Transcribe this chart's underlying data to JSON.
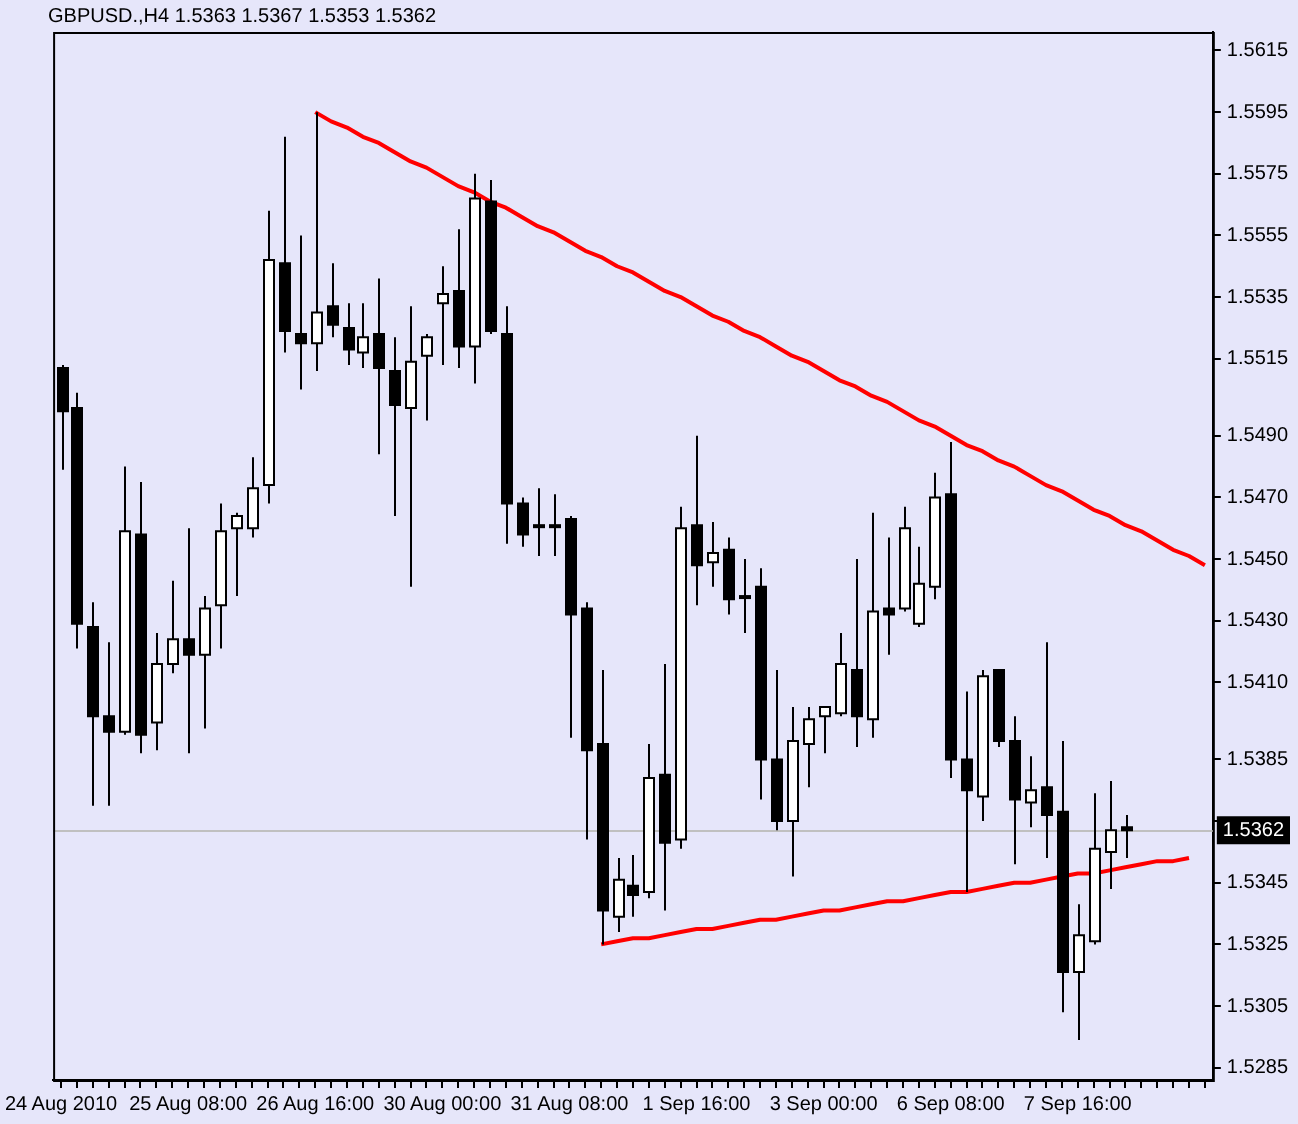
{
  "chart_data": {
    "type": "candlestick",
    "title": "GBPUSD.,H4 1.5363 1.5367 1.5353 1.5362",
    "categories": [
      "24 Aug 2010",
      null,
      null,
      null,
      null,
      null,
      null,
      null,
      "25 Aug 08:00",
      null,
      null,
      null,
      null,
      null,
      null,
      null,
      "26 Aug 16:00",
      null,
      null,
      null,
      null,
      null,
      null,
      null,
      "30 Aug 00:00",
      null,
      null,
      null,
      null,
      null,
      null,
      null,
      "31 Aug 08:00",
      null,
      null,
      null,
      null,
      null,
      null,
      null,
      "1 Sep 16:00",
      null,
      null,
      null,
      null,
      null,
      null,
      null,
      "3 Sep 00:00",
      null,
      null,
      null,
      null,
      null,
      null,
      null,
      "6 Sep 08:00",
      null,
      null,
      null,
      null,
      null,
      null,
      null,
      "7 Sep 16:00",
      null,
      null,
      null,
      null,
      null,
      null,
      null,
      null
    ],
    "ohlc": [
      [
        1.5512,
        1.5513,
        1.5479,
        1.5498
      ],
      [
        1.5499,
        1.5504,
        1.5421,
        1.5429
      ],
      [
        1.5428,
        1.5436,
        1.537,
        1.5399
      ],
      [
        1.5399,
        1.5423,
        1.537,
        1.5394
      ],
      [
        1.5394,
        1.548,
        1.5393,
        1.5459
      ],
      [
        1.5458,
        1.5475,
        1.5387,
        1.5393
      ],
      [
        1.5397,
        1.5426,
        1.5388,
        1.5416
      ],
      [
        1.5416,
        1.5443,
        1.5413,
        1.5424
      ],
      [
        1.5424,
        1.546,
        1.5387,
        1.5419
      ],
      [
        1.5419,
        1.5438,
        1.5395,
        1.5434
      ],
      [
        1.5435,
        1.5468,
        1.5421,
        1.5459
      ],
      [
        1.546,
        1.5465,
        1.5438,
        1.5464
      ],
      [
        1.546,
        1.5483,
        1.5457,
        1.5473
      ],
      [
        1.5474,
        1.5563,
        1.5468,
        1.5547
      ],
      [
        1.5546,
        1.5587,
        1.5517,
        1.5524
      ],
      [
        1.5523,
        1.5555,
        1.5505,
        1.552
      ],
      [
        1.552,
        1.5595,
        1.5511,
        1.553
      ],
      [
        1.5532,
        1.5546,
        1.5522,
        1.5526
      ],
      [
        1.5525,
        1.5533,
        1.5513,
        1.5518
      ],
      [
        1.5517,
        1.5533,
        1.5512,
        1.5522
      ],
      [
        1.5523,
        1.5541,
        1.5484,
        1.5512
      ],
      [
        1.5511,
        1.5522,
        1.5464,
        1.55
      ],
      [
        1.5499,
        1.5532,
        1.5441,
        1.5514
      ],
      [
        1.5516,
        1.5523,
        1.5495,
        1.5522
      ],
      [
        1.5533,
        1.5545,
        1.5513,
        1.5536
      ],
      [
        1.5537,
        1.5557,
        1.5512,
        1.5519
      ],
      [
        1.5519,
        1.5575,
        1.5507,
        1.5567
      ],
      [
        1.5566,
        1.5573,
        1.5523,
        1.5524
      ],
      [
        1.5523,
        1.5532,
        1.5455,
        1.5468
      ],
      [
        1.5468,
        1.547,
        1.5454,
        1.5458
      ],
      [
        1.5461,
        1.5473,
        1.5451,
        1.5461
      ],
      [
        1.5461,
        1.5471,
        1.5451,
        1.5461
      ],
      [
        1.5463,
        1.5464,
        1.5392,
        1.5432
      ],
      [
        1.5434,
        1.5436,
        1.5359,
        1.5388
      ],
      [
        1.539,
        1.5414,
        1.5325,
        1.5336
      ],
      [
        1.5334,
        1.5353,
        1.5329,
        1.5346
      ],
      [
        1.5344,
        1.5354,
        1.5334,
        1.5341
      ],
      [
        1.5342,
        1.539,
        1.534,
        1.5379
      ],
      [
        1.538,
        1.5416,
        1.5336,
        1.5358
      ],
      [
        1.5359,
        1.5467,
        1.5356,
        1.546
      ],
      [
        1.5461,
        1.549,
        1.5435,
        1.5448
      ],
      [
        1.5449,
        1.5462,
        1.5441,
        1.5452
      ],
      [
        1.5453,
        1.5457,
        1.5432,
        1.5437
      ],
      [
        1.5438,
        1.545,
        1.5426,
        1.5438
      ],
      [
        1.5441,
        1.5447,
        1.5372,
        1.5385
      ],
      [
        1.5385,
        1.5414,
        1.5362,
        1.5365
      ],
      [
        1.5365,
        1.5402,
        1.5347,
        1.5391
      ],
      [
        1.539,
        1.5402,
        1.5376,
        1.5398
      ],
      [
        1.5399,
        1.5402,
        1.5387,
        1.5402
      ],
      [
        1.54,
        1.5426,
        1.5399,
        1.5416
      ],
      [
        1.5414,
        1.545,
        1.5389,
        1.5399
      ],
      [
        1.5398,
        1.5465,
        1.5392,
        1.5433
      ],
      [
        1.5434,
        1.5457,
        1.5419,
        1.5432
      ],
      [
        1.5434,
        1.5467,
        1.5433,
        1.546
      ],
      [
        1.5429,
        1.5454,
        1.5428,
        1.5442
      ],
      [
        1.5441,
        1.5478,
        1.5437,
        1.547
      ],
      [
        1.5471,
        1.5488,
        1.5379,
        1.5385
      ],
      [
        1.5385,
        1.5407,
        1.5342,
        1.5375
      ],
      [
        1.5373,
        1.5414,
        1.5365,
        1.5412
      ],
      [
        1.5414,
        1.5414,
        1.5389,
        1.5391
      ],
      [
        1.5391,
        1.5399,
        1.5351,
        1.5372
      ],
      [
        1.5371,
        1.5386,
        1.5363,
        1.5375
      ],
      [
        1.5376,
        1.5423,
        1.5353,
        1.5367
      ],
      [
        1.5368,
        1.5391,
        1.5303,
        1.5316
      ],
      [
        1.5316,
        1.5338,
        1.5294,
        1.5328
      ],
      [
        1.5326,
        1.5374,
        1.5325,
        1.5356
      ],
      [
        1.5355,
        1.5378,
        1.5343,
        1.5362
      ],
      [
        1.5363,
        1.5367,
        1.5353,
        1.5362
      ],
      null,
      null,
      null,
      null,
      null
    ],
    "series": [
      {
        "type": "line",
        "color": "#ff0000",
        "values": [
          null,
          null,
          null,
          null,
          null,
          null,
          null,
          null,
          null,
          null,
          null,
          null,
          null,
          null,
          null,
          null,
          1.5595,
          1.5592,
          1.559,
          1.5587,
          1.5585,
          1.5582,
          1.5579,
          1.5577,
          1.5574,
          1.5571,
          1.5569,
          1.5566,
          1.5564,
          1.5561,
          1.5558,
          1.5556,
          1.5553,
          1.555,
          1.5548,
          1.5545,
          1.5543,
          1.554,
          1.5537,
          1.5535,
          1.5532,
          1.5529,
          1.5527,
          1.5524,
          1.5522,
          1.5519,
          1.5516,
          1.5514,
          1.5511,
          1.5508,
          1.5506,
          1.5503,
          1.5501,
          1.5498,
          1.5495,
          1.5493,
          1.549,
          1.5487,
          1.5485,
          1.5482,
          1.548,
          1.5477,
          1.5474,
          1.5472,
          1.5469,
          1.5466,
          1.5464,
          1.5461,
          1.5459,
          1.5456,
          1.5453,
          1.5451,
          1.5448
        ]
      },
      {
        "type": "line",
        "color": "#ff0000",
        "values": [
          null,
          null,
          null,
          null,
          null,
          null,
          null,
          null,
          null,
          null,
          null,
          null,
          null,
          null,
          null,
          null,
          null,
          null,
          null,
          null,
          null,
          null,
          null,
          null,
          null,
          null,
          null,
          null,
          null,
          null,
          null,
          null,
          null,
          null,
          1.5325,
          1.5326,
          1.5327,
          1.5327,
          1.5328,
          1.5329,
          1.533,
          1.533,
          1.5331,
          1.5332,
          1.5333,
          1.5333,
          1.5334,
          1.5335,
          1.5336,
          1.5336,
          1.5337,
          1.5338,
          1.5339,
          1.5339,
          1.534,
          1.5341,
          1.5342,
          1.5342,
          1.5343,
          1.5344,
          1.5345,
          1.5345,
          1.5346,
          1.5347,
          1.5348,
          1.5348,
          1.5349,
          1.535,
          1.5351,
          1.5352,
          1.5352,
          1.5353,
          null
        ]
      }
    ],
    "ylim": [
      1.5281,
      1.5621
    ],
    "yticks": [
      1.5615,
      1.5595,
      1.5575,
      1.5555,
      1.5535,
      1.5515,
      {
        "value": 1.549,
        "label": "1.5490"
      },
      {
        "value": 1.547,
        "label": "1.5470"
      },
      {
        "value": 1.545,
        "label": "1.5450"
      },
      {
        "value": 1.543,
        "label": "1.5430"
      },
      {
        "value": 1.541,
        "label": "1.5410"
      },
      1.5385,
      {
        "value": 1.5365,
        "label": null
      },
      1.5345,
      1.5325,
      1.5305,
      1.5285
    ],
    "ref_lines": [
      {
        "axis": "y",
        "value": 1.5362,
        "label": "1.5362",
        "color": "#c0c0c0"
      }
    ]
  }
}
